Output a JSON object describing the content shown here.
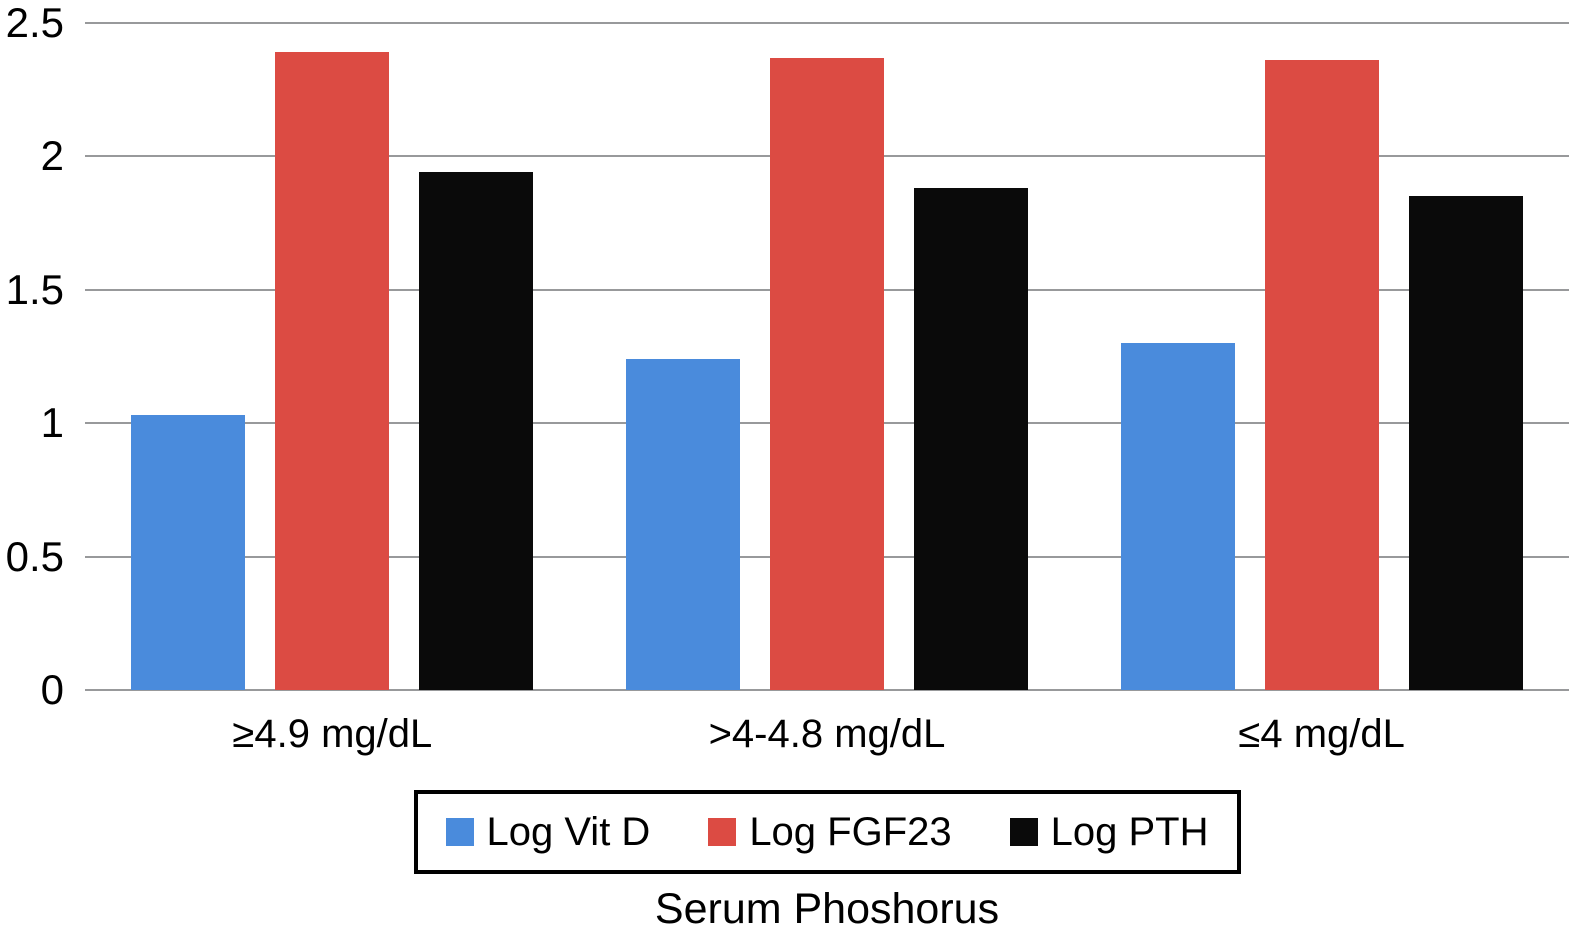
{
  "chart_data": {
    "type": "bar",
    "title": "",
    "xlabel": "Serum Phoshorus",
    "ylabel": "",
    "ylim": [
      0,
      2.5
    ],
    "ytick_labels": [
      "0",
      "0.5",
      "1",
      "1.5",
      "2",
      "2.5"
    ],
    "grid": "horizontal-gridlines-only",
    "gridline_color": "#98999b",
    "legend_position": "bottom-boxed",
    "categories": [
      "≥4.9 mg/dL",
      ">4-4.8 mg/dL",
      "≤4 mg/dL"
    ],
    "series": [
      {
        "name": "Log Vit D",
        "color": "#4a8bdc",
        "values": [
          1.03,
          1.24,
          1.3
        ]
      },
      {
        "name": "Log FGF23",
        "color": "#dc4b43",
        "values": [
          2.39,
          2.37,
          2.36
        ]
      },
      {
        "name": "Log PTH",
        "color": "#0a0a0a",
        "values": [
          1.94,
          1.88,
          1.85
        ]
      }
    ]
  }
}
